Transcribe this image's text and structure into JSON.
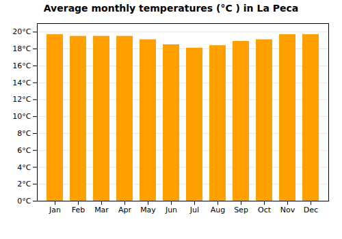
{
  "chart_data": {
    "type": "bar",
    "title": "Average monthly temperatures (°C ) in La Peca",
    "categories": [
      "Jan",
      "Feb",
      "Mar",
      "Apr",
      "May",
      "Jun",
      "Jul",
      "Aug",
      "Sep",
      "Oct",
      "Nov",
      "Dec"
    ],
    "values": [
      19.7,
      19.5,
      19.5,
      19.5,
      19.1,
      18.5,
      18.1,
      18.4,
      18.9,
      19.1,
      19.7,
      19.7
    ],
    "color": "#FFA000",
    "ylim": [
      0,
      21
    ],
    "yticks": [
      {
        "value": 0,
        "label": "0°C"
      },
      {
        "value": 2,
        "label": "2°C"
      },
      {
        "value": 4,
        "label": "4°C"
      },
      {
        "value": 6,
        "label": "6°C"
      },
      {
        "value": 8,
        "label": "8°C"
      },
      {
        "value": 10,
        "label": "10°C"
      },
      {
        "value": 12,
        "label": "12°C"
      },
      {
        "value": 14,
        "label": "14°C"
      },
      {
        "value": 16,
        "label": "16°C"
      },
      {
        "value": 18,
        "label": "18°C"
      },
      {
        "value": 20,
        "label": "20°C"
      }
    ],
    "grid": true
  }
}
